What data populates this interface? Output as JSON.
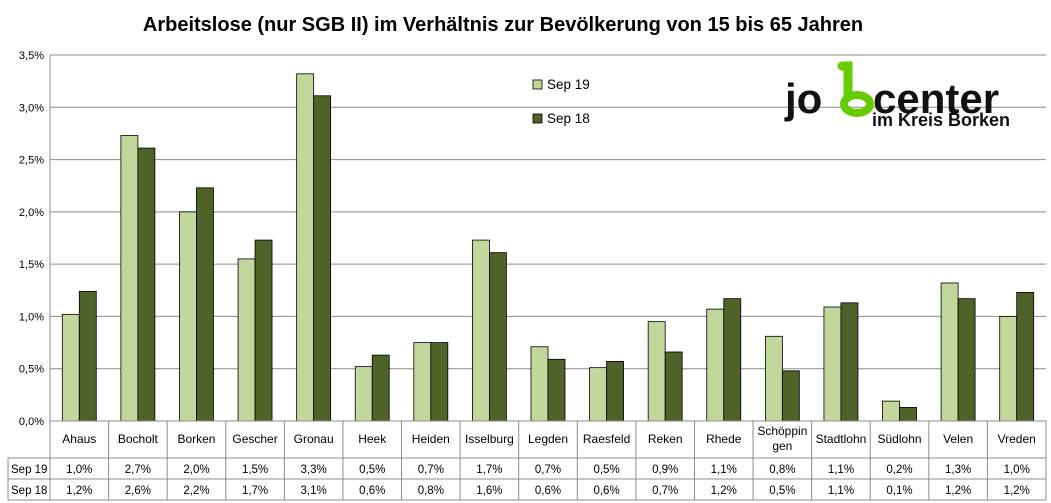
{
  "chart_data": {
    "type": "bar",
    "title": "Arbeitslose (nur SGB II) im Verhältnis zur Bevölkerung von 15 bis 65 Jahren",
    "xlabel": "",
    "ylabel": "",
    "ylim": [
      0,
      3.5
    ],
    "yticks": [
      "0,0%",
      "0,5%",
      "1,0%",
      "1,5%",
      "2,0%",
      "2,5%",
      "3,0%",
      "3,5%"
    ],
    "grid": true,
    "legend_position": "top-right",
    "categories": [
      "Ahaus",
      "Bocholt",
      "Borken",
      "Gescher",
      "Gronau",
      "Heek",
      "Heiden",
      "Isselburg",
      "Legden",
      "Raesfeld",
      "Reken",
      "Rhede",
      "Schöppin\ngen",
      "Stadtlohn",
      "Südlohn",
      "Velen",
      "Vreden"
    ],
    "series": [
      {
        "name": "Sep 19",
        "color": "#c3d69b",
        "values": [
          1.02,
          2.73,
          2.0,
          1.55,
          3.32,
          0.52,
          0.75,
          1.73,
          0.71,
          0.51,
          0.95,
          1.07,
          0.81,
          1.09,
          0.19,
          1.32,
          1.0
        ],
        "labels": [
          "1,0%",
          "2,7%",
          "2,0%",
          "1,5%",
          "3,3%",
          "0,5%",
          "0,7%",
          "1,7%",
          "0,7%",
          "0,5%",
          "0,9%",
          "1,1%",
          "0,8%",
          "1,1%",
          "0,2%",
          "1,3%",
          "1,0%"
        ]
      },
      {
        "name": "Sep 18",
        "color": "#4f6228",
        "values": [
          1.24,
          2.61,
          2.23,
          1.73,
          3.11,
          0.63,
          0.75,
          1.61,
          0.59,
          0.57,
          0.66,
          1.17,
          0.48,
          1.13,
          0.13,
          1.17,
          1.23
        ],
        "labels": [
          "1,2%",
          "2,6%",
          "2,2%",
          "1,7%",
          "3,1%",
          "0,6%",
          "0,8%",
          "1,6%",
          "0,6%",
          "0,6%",
          "0,7%",
          "1,2%",
          "0,5%",
          "1,1%",
          "0,1%",
          "1,2%",
          "1,2%"
        ]
      }
    ]
  },
  "logo": {
    "text_main": "jobcenter",
    "text_sub": "im Kreis Borken",
    "accent_color": "#66cc00"
  }
}
